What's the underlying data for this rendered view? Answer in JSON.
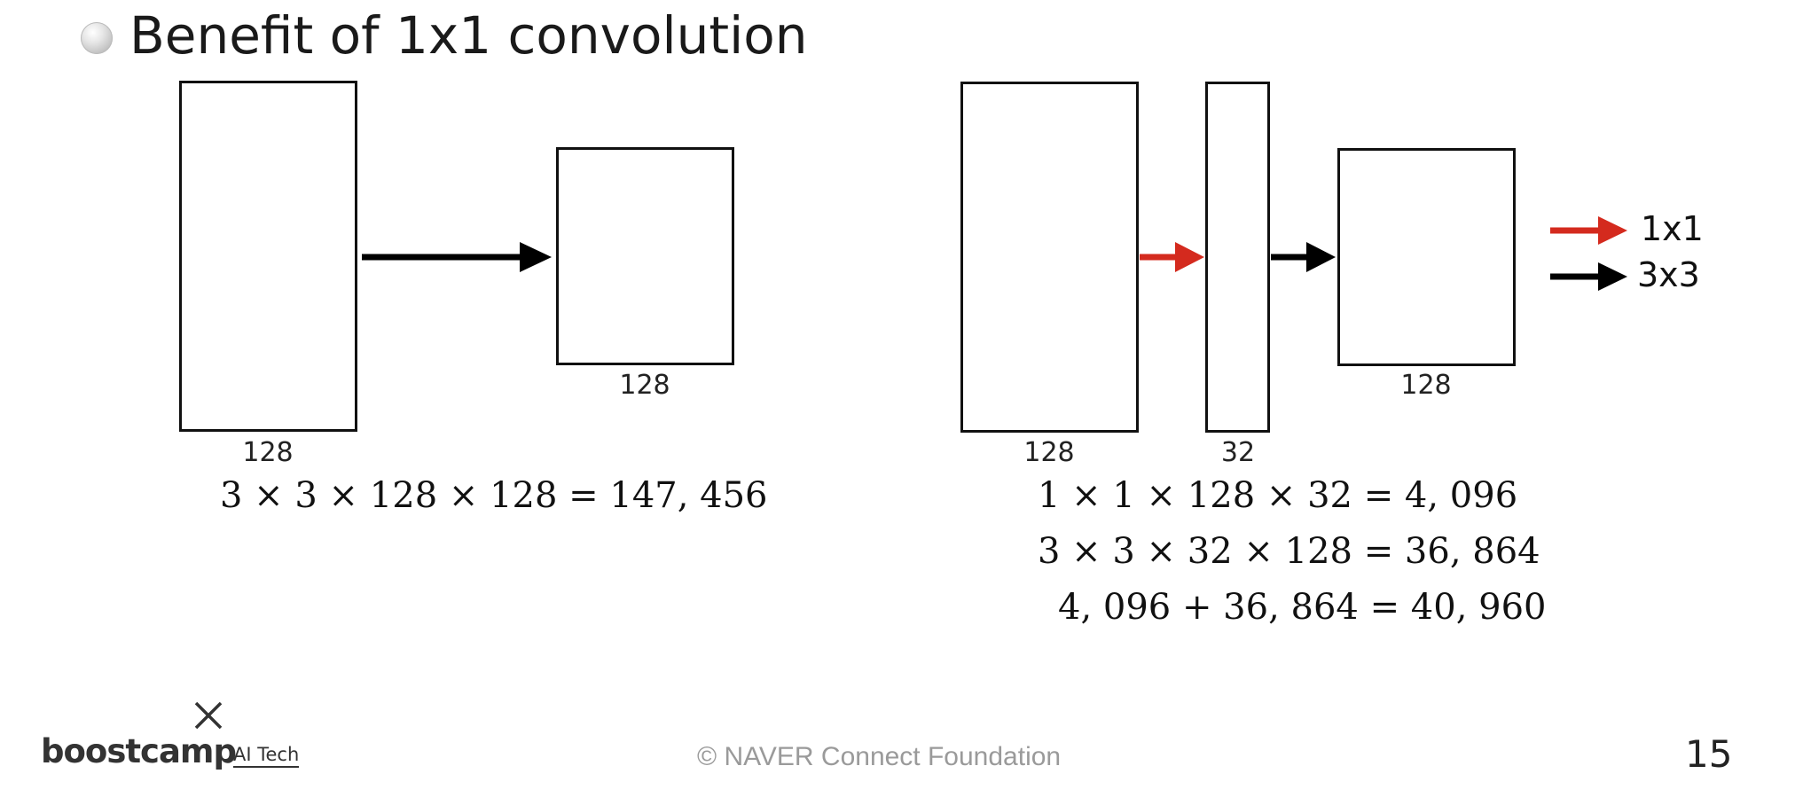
{
  "slide": {
    "title": "Benefit of 1x1 convolution",
    "page_number": "15"
  },
  "left_diagram": {
    "input_label": "128",
    "output_label": "128",
    "formula": "3 × 3 × 128 × 128 = 147, 456"
  },
  "right_diagram": {
    "input_label": "128",
    "bottleneck_label": "32",
    "output_label": "128",
    "formulas": [
      "1 × 1 × 128 × 32 = 4, 096",
      "3 × 3 × 32 × 128 = 36, 864",
      "4, 096 + 36, 864 = 40, 960"
    ]
  },
  "legend": {
    "items": [
      {
        "label": "1x1",
        "color": "#d42a1e"
      },
      {
        "label": "3x3",
        "color": "#000000"
      }
    ]
  },
  "footer": {
    "brand": "boostcamp",
    "brand_sub": "AI Tech",
    "copyright": "©  NAVER Connect Foundation"
  },
  "colors": {
    "arrow_1x1": "#d42a1e",
    "arrow_3x3": "#000000"
  }
}
